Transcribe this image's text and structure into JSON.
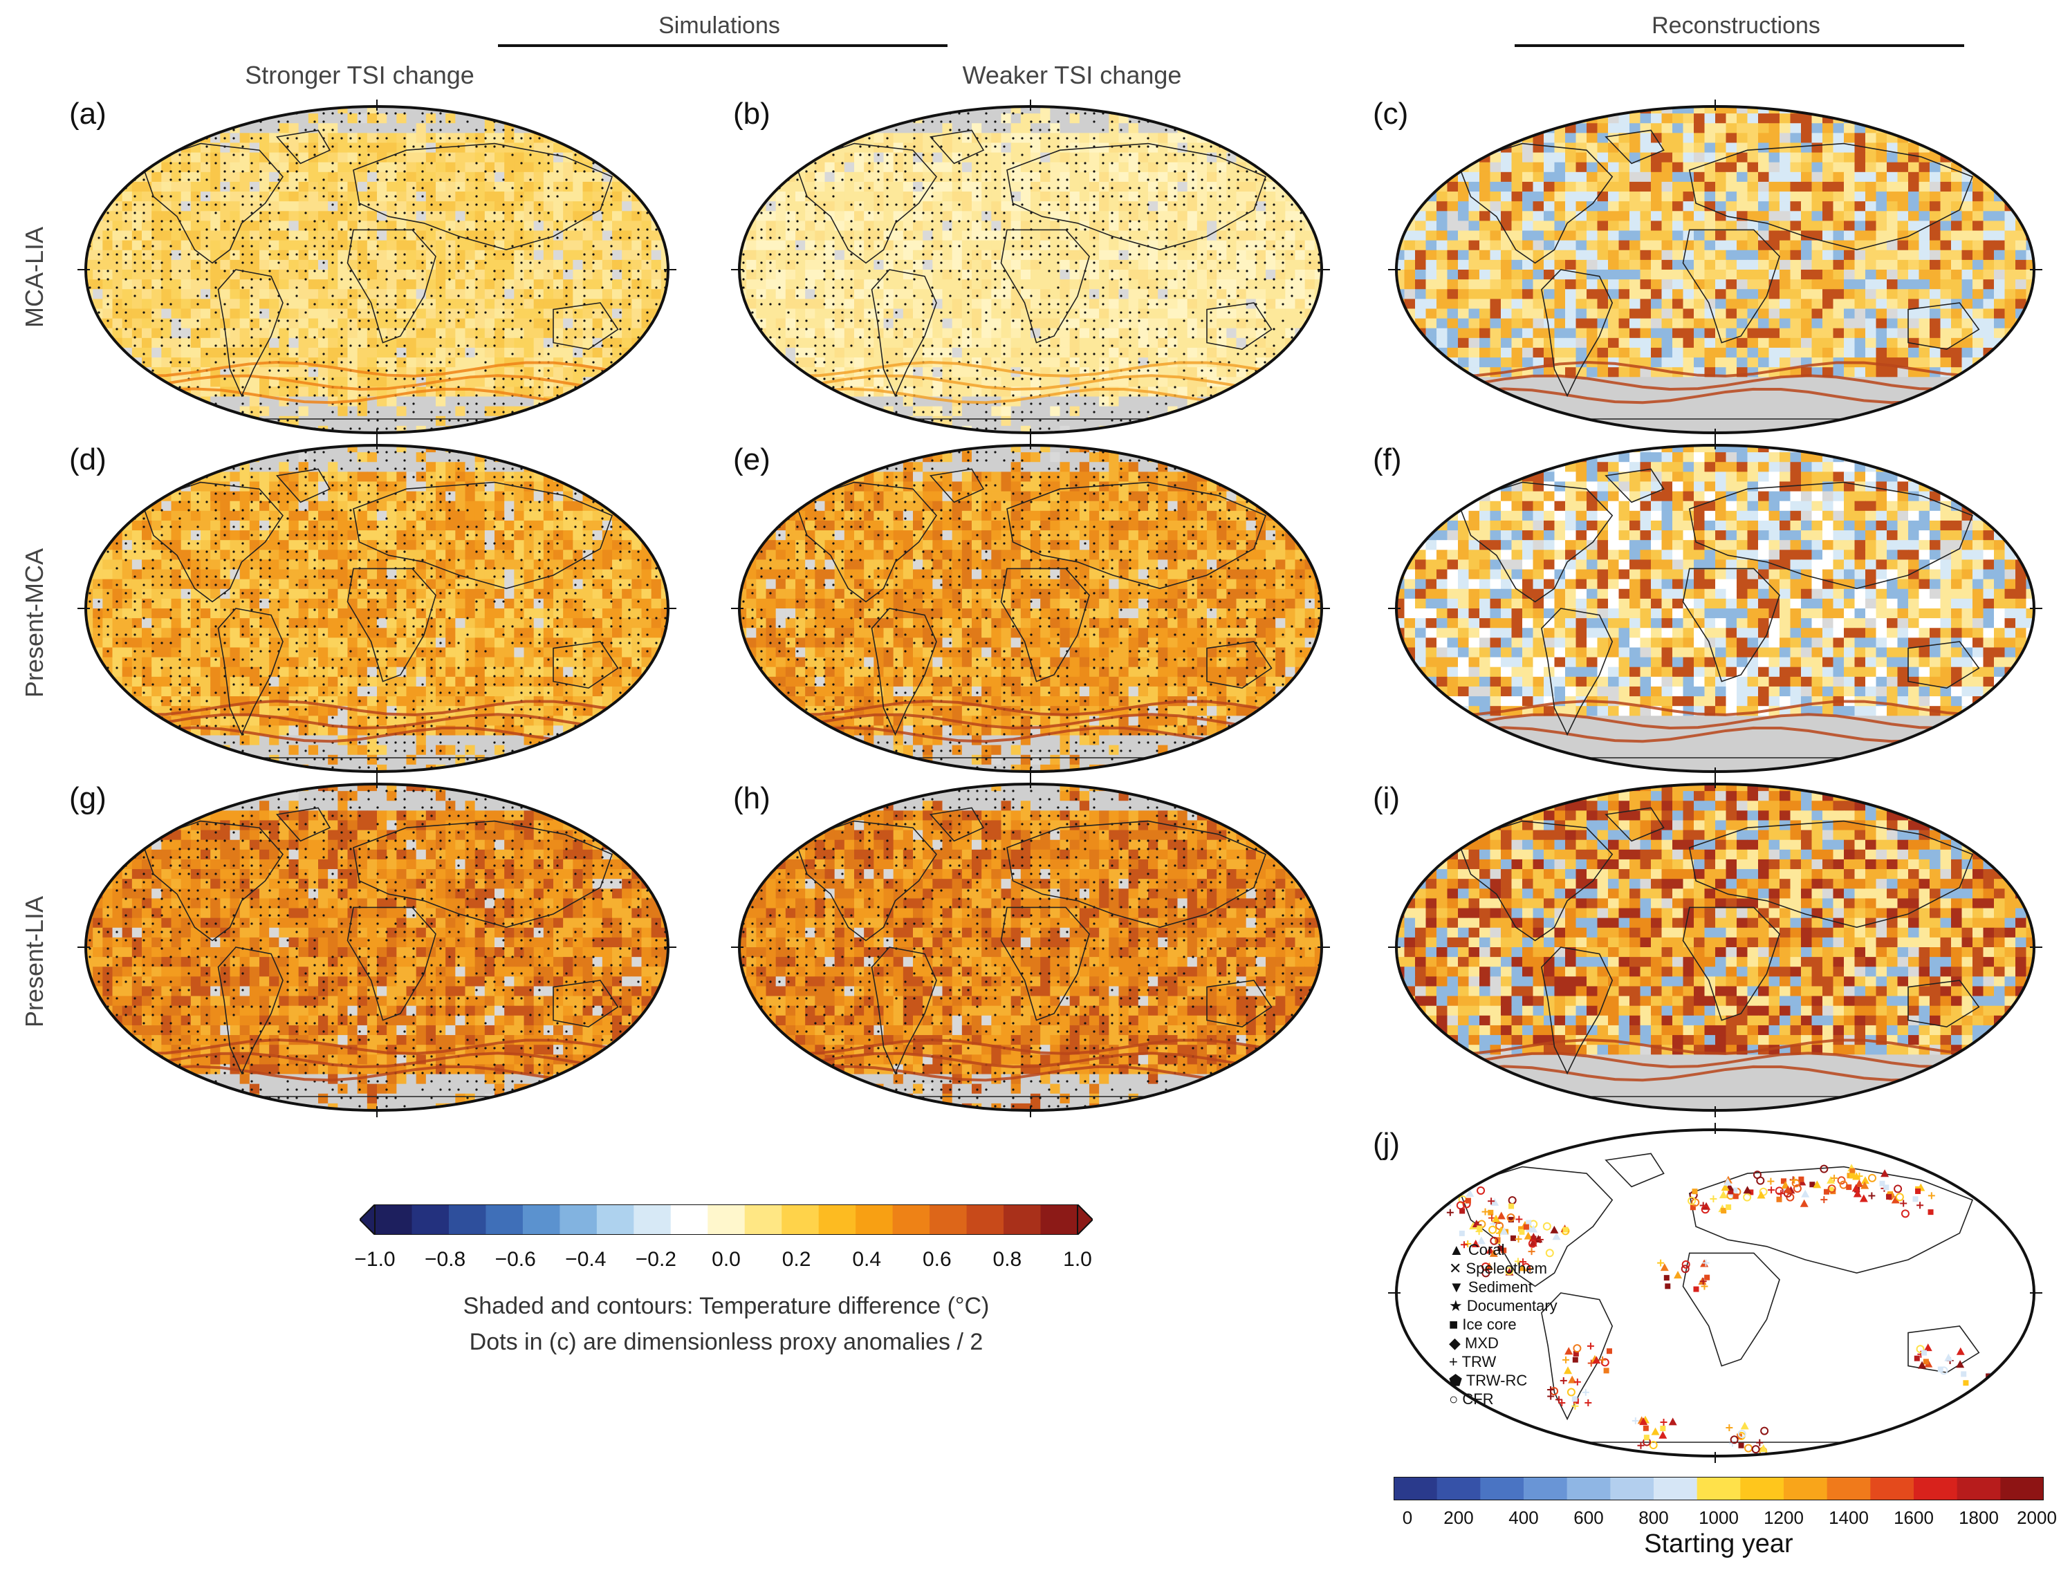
{
  "figure": {
    "group_titles": {
      "simulations": "Simulations",
      "reconstructions": "Reconstructions"
    },
    "column_titles": [
      "Stronger TSI change",
      "Weaker TSI change"
    ],
    "row_labels": [
      "MCA-LIA",
      "Present-MCA",
      "Present-LIA"
    ],
    "panels": [
      "(a)",
      "(b)",
      "(c)",
      "(d)",
      "(e)",
      "(f)",
      "(g)",
      "(h)",
      "(i)",
      "(j)"
    ],
    "temperature_colorbar": {
      "ticks": [
        "−1.0",
        "−0.8",
        "−0.6",
        "−0.4",
        "−0.2",
        "0.0",
        "0.2",
        "0.4",
        "0.6",
        "0.8",
        "1.0"
      ],
      "colors": [
        "#1d1f5e",
        "#23317e",
        "#2e4f9c",
        "#3f6fb8",
        "#5b92cf",
        "#82b3e0",
        "#aed2ee",
        "#d7e9f6",
        "#ffffff",
        "#fff7cc",
        "#ffe784",
        "#ffd34a",
        "#fdbb21",
        "#f8a013",
        "#ee8216",
        "#dd6619",
        "#c84a1a",
        "#a9301a",
        "#8c1a17"
      ],
      "caption_line1": "Shaded and contours: Temperature difference (°C)",
      "caption_line2": "Dots in (c) are dimensionless proxy anomalies / 2"
    },
    "starting_year_colorbar": {
      "ticks": [
        "0",
        "200",
        "400",
        "600",
        "800",
        "1000",
        "1200",
        "1400",
        "1600",
        "1800",
        "2000"
      ],
      "colors": [
        "#2a3a8c",
        "#3652a8",
        "#4a74c3",
        "#6995d6",
        "#8fb6e4",
        "#b3cfee",
        "#d6e6f6",
        "#ffe14a",
        "#ffc61c",
        "#f9a51a",
        "#f07a1b",
        "#e44a1c",
        "#d8221c",
        "#b71c1c",
        "#8e1414"
      ],
      "label": "Starting year"
    },
    "proxy_legend": [
      "Coral",
      "Speleothem",
      "Sediment",
      "Documentary",
      "Ice core",
      "MXD",
      "TRW",
      "TRW-RC",
      "CFR"
    ],
    "colors": {
      "ocean_gray": "#cfcfcf",
      "land_line": "#222222",
      "warm_light": "#fde89a",
      "warm_mid": "#f9b73a",
      "warm_dark": "#c2501b",
      "cool": "#8fb8e0"
    }
  }
}
